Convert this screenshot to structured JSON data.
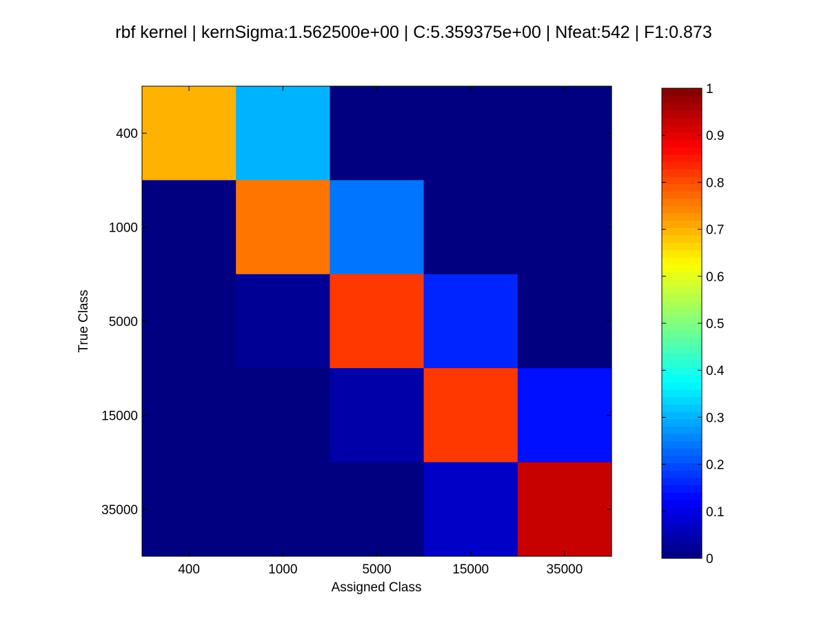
{
  "chart_data": {
    "type": "heatmap",
    "title": "rbf kernel | kernSigma:1.562500e+00 | C:5.359375e+00 | Nfeat:542 | F1:0.873",
    "xlabel": "Assigned Class",
    "ylabel": "True Class",
    "x_categories": [
      "400",
      "1000",
      "5000",
      "15000",
      "35000"
    ],
    "y_categories": [
      "400",
      "1000",
      "5000",
      "15000",
      "35000"
    ],
    "values": [
      [
        0.7,
        0.3,
        0.0,
        0.0,
        0.0
      ],
      [
        0.0,
        0.76,
        0.24,
        0.0,
        0.0
      ],
      [
        0.0,
        0.02,
        0.82,
        0.16,
        0.0
      ],
      [
        0.0,
        0.0,
        0.04,
        0.82,
        0.14
      ],
      [
        0.0,
        0.0,
        0.0,
        0.07,
        0.93
      ]
    ],
    "zlim": [
      0,
      1
    ],
    "colormap": "jet",
    "colorbar": {
      "ticks": [
        0,
        0.1,
        0.2,
        0.3,
        0.4,
        0.5,
        0.6,
        0.7,
        0.8,
        0.9,
        1
      ],
      "tick_labels": [
        "0",
        "0.1",
        "0.2",
        "0.3",
        "0.4",
        "0.5",
        "0.6",
        "0.7",
        "0.8",
        "0.9",
        "1"
      ],
      "position": "right"
    },
    "grid": false
  }
}
